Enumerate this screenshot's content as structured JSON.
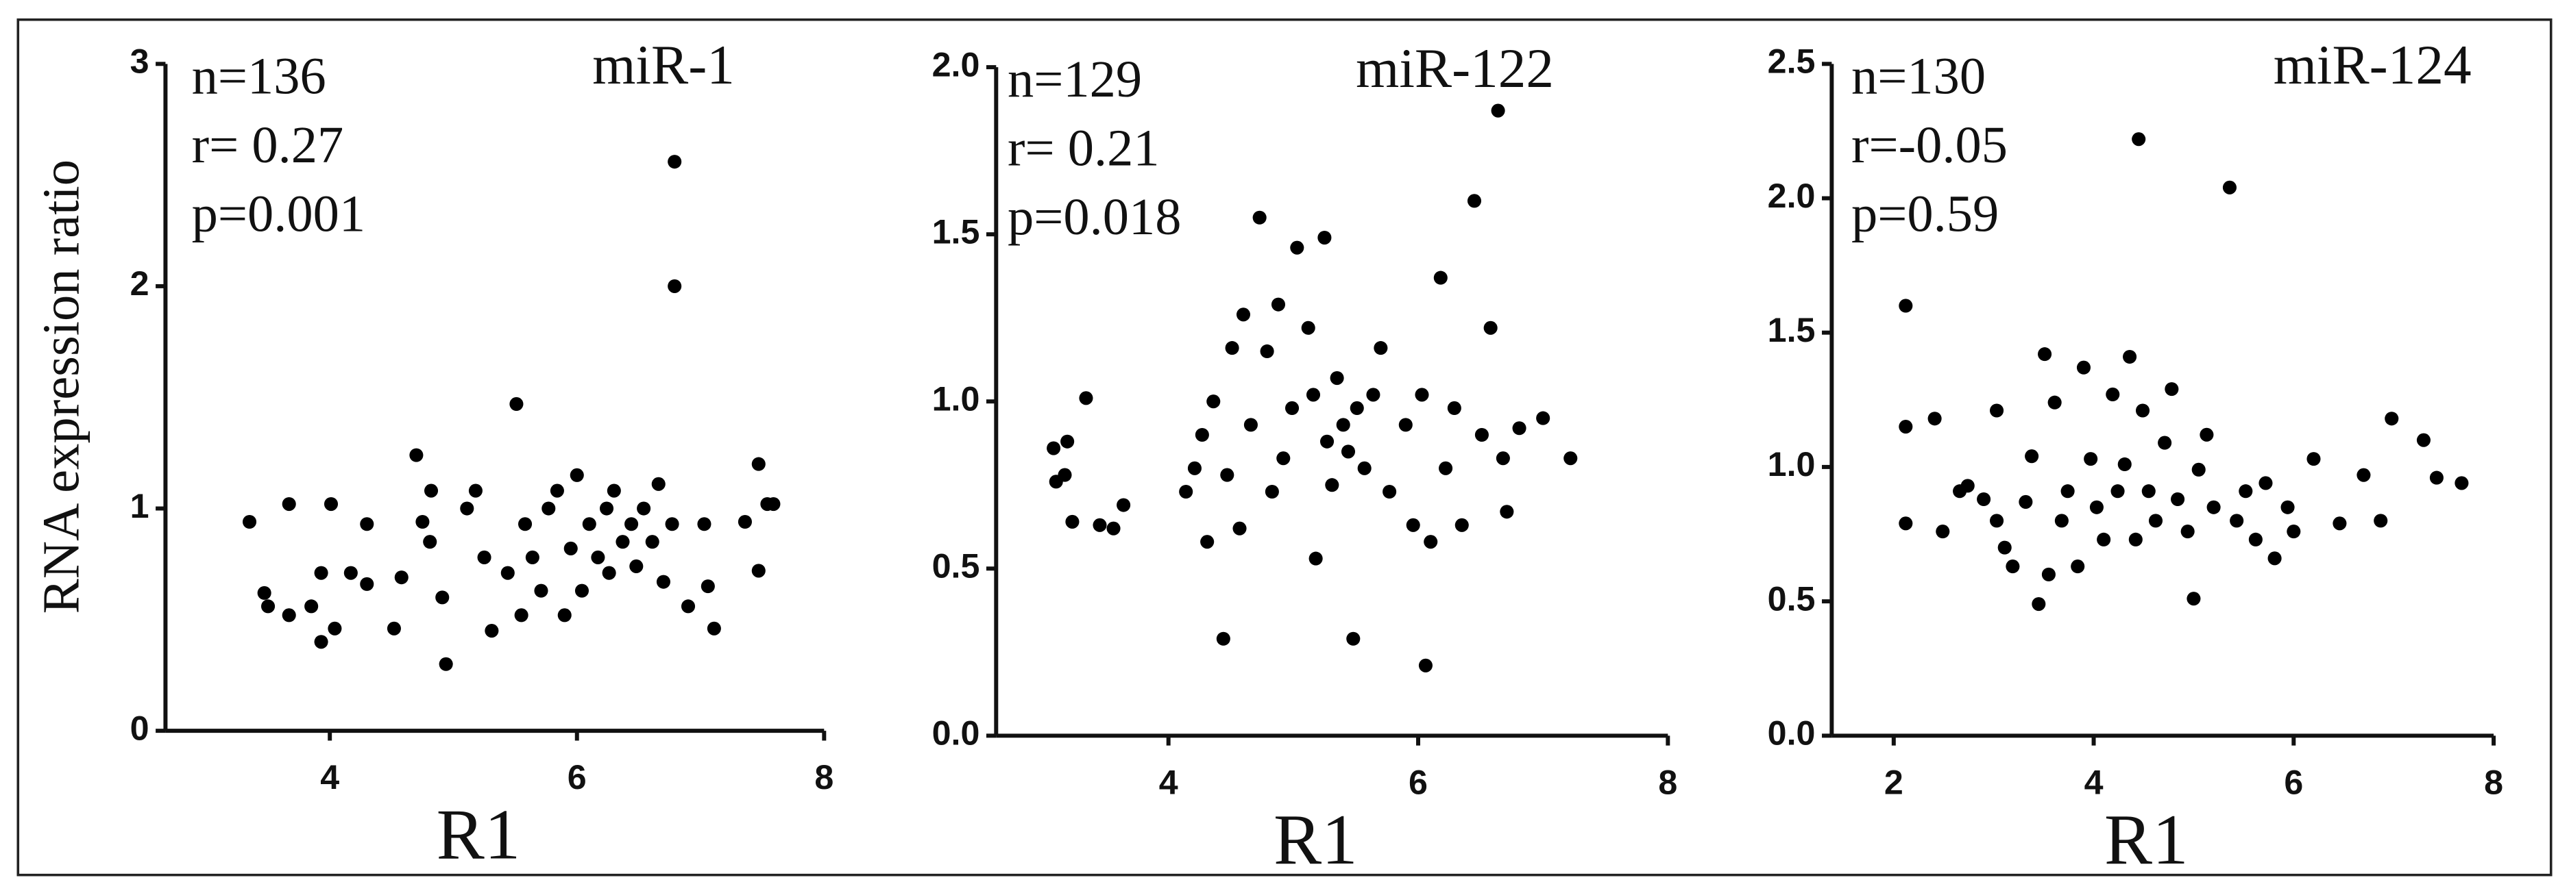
{
  "chart_data": [
    {
      "type": "scatter",
      "title": "miR-1",
      "annotations": [
        "n=136",
        "r= 0.27",
        "p=0.001"
      ],
      "x_label": "R1",
      "y_label": "RNA expression ratio",
      "color": "#000000",
      "xlim": [
        2.67,
        8
      ],
      "xticks": [
        4,
        6,
        8
      ],
      "ylim": [
        0,
        3
      ],
      "yticks": [
        0,
        1,
        2,
        3
      ],
      "x": [
        3.35,
        3.47,
        3.5,
        3.67,
        3.67,
        3.85,
        3.93,
        3.93,
        4.01,
        4.04,
        4.17,
        4.3,
        4.3,
        4.52,
        4.58,
        4.7,
        4.75,
        4.82,
        4.91,
        4.94,
        4.81,
        5.11,
        5.18,
        5.25,
        5.31,
        5.44,
        5.51,
        5.55,
        5.58,
        5.64,
        5.71,
        5.77,
        5.84,
        5.9,
        5.95,
        6.0,
        6.04,
        6.1,
        6.17,
        6.24,
        6.26,
        6.3,
        6.37,
        6.44,
        6.48,
        6.54,
        6.61,
        6.66,
        6.7,
        6.77,
        6.79,
        6.79,
        6.9,
        7.03,
        7.06,
        7.11,
        7.36,
        7.47,
        7.47,
        7.54,
        7.59
      ],
      "values": [
        0.94,
        0.62,
        0.56,
        1.02,
        0.52,
        0.56,
        0.4,
        0.71,
        1.02,
        0.46,
        0.71,
        0.66,
        0.93,
        0.46,
        0.69,
        1.24,
        0.94,
        1.08,
        0.6,
        0.3,
        0.85,
        1.0,
        1.08,
        0.78,
        0.45,
        0.71,
        1.47,
        0.52,
        0.93,
        0.78,
        0.63,
        1.0,
        1.08,
        0.52,
        0.82,
        1.15,
        0.63,
        0.93,
        0.78,
        1.0,
        0.71,
        1.08,
        0.85,
        0.93,
        0.74,
        1.0,
        0.85,
        1.11,
        0.67,
        0.93,
        2.56,
        2.0,
        0.56,
        0.93,
        0.65,
        0.46,
        0.94,
        1.2,
        0.72,
        1.02,
        1.02
      ]
    },
    {
      "type": "scatter",
      "title": "miR-122",
      "annotations": [
        "n=129",
        "r= 0.21",
        "p=0.018"
      ],
      "x_label": "R1",
      "color": "#000000",
      "xlim": [
        2.62,
        8
      ],
      "xticks": [
        4,
        6,
        8
      ],
      "ylim": [
        0,
        2
      ],
      "yticks": [
        {
          "value": 0,
          "label": "0.0"
        },
        {
          "value": 0.5,
          "label": "0.5"
        },
        {
          "value": 1,
          "label": "1.0"
        },
        {
          "value": 1.5,
          "label": "1.5"
        },
        {
          "value": 2,
          "label": "2.0"
        }
      ],
      "x": [
        3.08,
        3.1,
        3.19,
        3.23,
        3.17,
        3.34,
        3.45,
        3.56,
        3.64,
        4.14,
        4.21,
        4.27,
        4.31,
        4.36,
        4.44,
        4.47,
        4.51,
        4.57,
        4.6,
        4.66,
        4.73,
        4.79,
        4.83,
        4.88,
        4.92,
        4.99,
        5.03,
        5.12,
        5.16,
        5.18,
        5.25,
        5.27,
        5.31,
        5.35,
        5.4,
        5.44,
        5.48,
        5.51,
        5.57,
        5.64,
        5.7,
        5.77,
        5.9,
        5.96,
        6.03,
        6.06,
        6.1,
        6.18,
        6.22,
        6.29,
        6.35,
        6.45,
        6.51,
        6.58,
        6.64,
        6.68,
        6.71,
        6.81,
        7.0,
        7.22
      ],
      "values": [
        0.86,
        0.76,
        0.88,
        0.64,
        0.78,
        1.01,
        0.63,
        0.62,
        0.69,
        0.73,
        0.8,
        0.9,
        0.58,
        1.0,
        0.29,
        0.78,
        1.16,
        0.62,
        1.26,
        0.93,
        1.55,
        1.15,
        0.73,
        1.29,
        0.83,
        0.98,
        1.46,
        1.22,
        1.02,
        0.53,
        1.49,
        0.88,
        0.75,
        1.07,
        0.93,
        0.85,
        0.29,
        0.98,
        0.8,
        1.02,
        1.16,
        0.73,
        0.93,
        0.63,
        1.02,
        0.21,
        0.58,
        1.37,
        0.8,
        0.98,
        0.63,
        1.6,
        0.9,
        1.22,
        1.87,
        0.83,
        0.67,
        0.92,
        0.95,
        0.83
      ]
    },
    {
      "type": "scatter",
      "title": "miR-124",
      "annotations": [
        "n=130",
        "r=-0.05",
        "p=0.59"
      ],
      "x_label": "R1",
      "color": "#000000",
      "xlim": [
        1.38,
        8
      ],
      "xticks": [
        2,
        4,
        6,
        8
      ],
      "ylim": [
        0,
        2.5
      ],
      "yticks": [
        {
          "value": 0,
          "label": "0.0"
        },
        {
          "value": 0.5,
          "label": "0.5"
        },
        {
          "value": 1,
          "label": "1.0"
        },
        {
          "value": 1.5,
          "label": "1.5"
        },
        {
          "value": 2,
          "label": "2.0"
        },
        {
          "value": 2.5,
          "label": "2.5"
        }
      ],
      "x": [
        2.12,
        2.12,
        2.12,
        2.41,
        2.49,
        2.66,
        2.74,
        2.9,
        3.03,
        3.03,
        3.11,
        3.19,
        3.32,
        3.38,
        3.45,
        3.51,
        3.55,
        3.61,
        3.68,
        3.74,
        3.84,
        3.9,
        3.97,
        4.03,
        4.1,
        4.19,
        4.24,
        4.31,
        4.36,
        4.42,
        4.45,
        4.49,
        4.55,
        4.62,
        4.71,
        4.78,
        4.84,
        4.94,
        5.0,
        5.05,
        5.13,
        5.2,
        5.36,
        5.43,
        5.52,
        5.62,
        5.72,
        5.81,
        5.94,
        6.0,
        6.2,
        6.46,
        6.7,
        6.87,
        6.98,
        7.3,
        7.43,
        7.68
      ],
      "values": [
        1.6,
        1.15,
        0.79,
        1.18,
        0.76,
        0.91,
        0.93,
        0.88,
        1.21,
        0.8,
        0.7,
        0.63,
        0.87,
        1.04,
        0.49,
        1.42,
        0.6,
        1.24,
        0.8,
        0.91,
        0.63,
        1.37,
        1.03,
        0.85,
        0.73,
        1.27,
        0.91,
        1.01,
        1.41,
        0.73,
        2.22,
        1.21,
        0.91,
        0.8,
        1.09,
        1.29,
        0.88,
        0.76,
        0.51,
        0.99,
        1.12,
        0.85,
        2.04,
        0.8,
        0.91,
        0.73,
        0.94,
        0.66,
        0.85,
        0.76,
        1.03,
        0.79,
        0.97,
        0.8,
        1.18,
        1.1,
        0.96,
        0.94
      ]
    }
  ]
}
